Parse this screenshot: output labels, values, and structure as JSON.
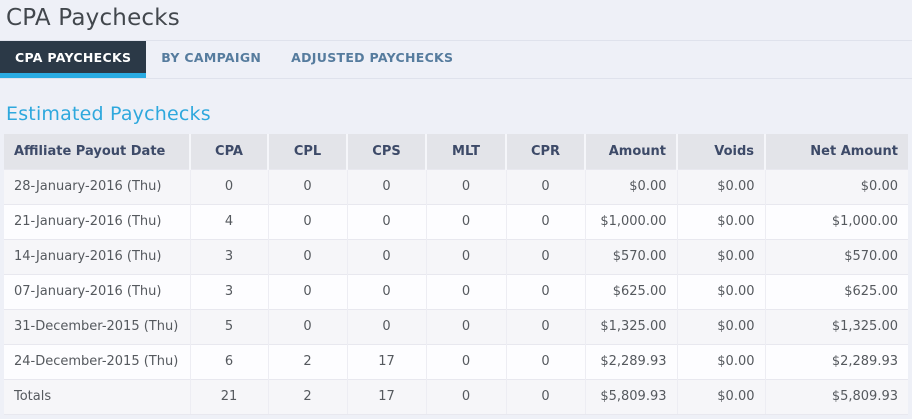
{
  "page": {
    "title": "CPA Paychecks"
  },
  "tabs": [
    {
      "label": "CPA PAYCHECKS",
      "active": true
    },
    {
      "label": "BY CAMPAIGN",
      "active": false
    },
    {
      "label": "ADJUSTED PAYCHECKS",
      "active": false
    }
  ],
  "section": {
    "heading": "Estimated Paychecks"
  },
  "table": {
    "columns": [
      "Affiliate Payout Date",
      "CPA",
      "CPL",
      "CPS",
      "MLT",
      "CPR",
      "Amount",
      "Voids",
      "Net Amount"
    ],
    "align": [
      "left",
      "center",
      "center",
      "center",
      "center",
      "center",
      "right",
      "right",
      "right"
    ],
    "rows": [
      [
        "28-January-2016 (Thu)",
        "0",
        "0",
        "0",
        "0",
        "0",
        "$0.00",
        "$0.00",
        "$0.00"
      ],
      [
        "21-January-2016 (Thu)",
        "4",
        "0",
        "0",
        "0",
        "0",
        "$1,000.00",
        "$0.00",
        "$1,000.00"
      ],
      [
        "14-January-2016 (Thu)",
        "3",
        "0",
        "0",
        "0",
        "0",
        "$570.00",
        "$0.00",
        "$570.00"
      ],
      [
        "07-January-2016 (Thu)",
        "3",
        "0",
        "0",
        "0",
        "0",
        "$625.00",
        "$0.00",
        "$625.00"
      ],
      [
        "31-December-2015 (Thu)",
        "5",
        "0",
        "0",
        "0",
        "0",
        "$1,325.00",
        "$0.00",
        "$1,325.00"
      ],
      [
        "24-December-2015 (Thu)",
        "6",
        "2",
        "17",
        "0",
        "0",
        "$2,289.93",
        "$0.00",
        "$2,289.93"
      ],
      [
        "Totals",
        "21",
        "2",
        "17",
        "0",
        "0",
        "$5,809.93",
        "$0.00",
        "$5,809.93"
      ]
    ]
  },
  "colors": {
    "accent_cyan": "#29abe2",
    "active_tab_bg": "#2b3947",
    "inactive_tab_text": "#567c9e",
    "heading_blue": "#2ea8dd",
    "header_bg": "#e3e4e9",
    "header_text": "#3d4a68",
    "page_bg": "#eef0f7"
  }
}
